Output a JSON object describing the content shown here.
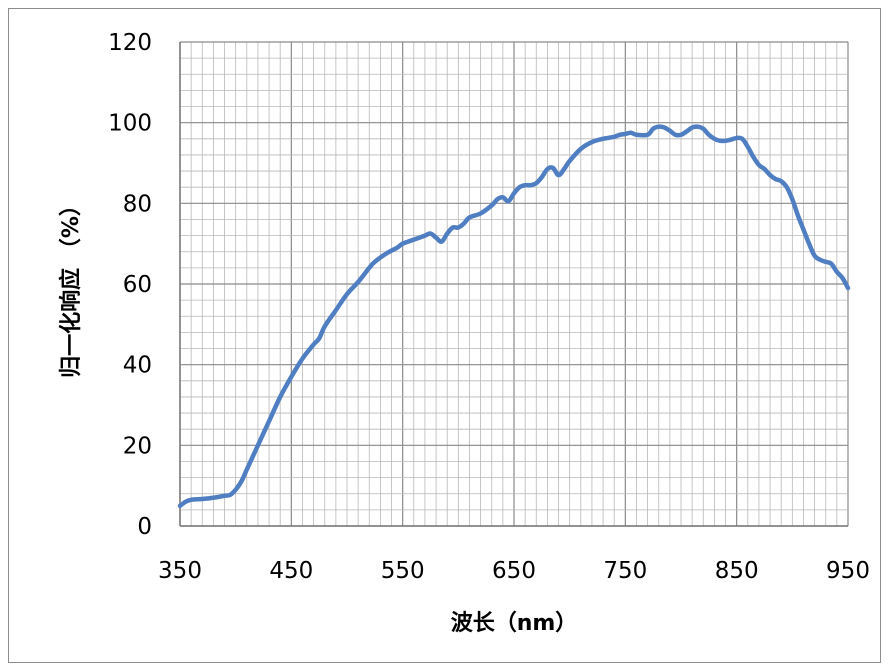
{
  "chart_data": {
    "type": "line",
    "xlabel": "波长（nm）",
    "ylabel": "归一化响应 （%）",
    "xlim": [
      350,
      950
    ],
    "ylim": [
      0,
      120
    ],
    "x_ticks": [
      350,
      450,
      550,
      650,
      750,
      850,
      950
    ],
    "y_ticks": [
      0,
      20,
      40,
      60,
      80,
      100,
      120
    ],
    "x_tick_labels": [
      "350",
      "450",
      "550",
      "650",
      "750",
      "850",
      "950"
    ],
    "y_tick_labels": [
      "0",
      "20",
      "40",
      "60",
      "80",
      "100",
      "120"
    ],
    "grid": true,
    "legend": "none",
    "series": [
      {
        "color": "#4f7ec2",
        "x": [
          350,
          355,
          360,
          370,
          380,
          390,
          395,
          400,
          405,
          410,
          420,
          430,
          440,
          450,
          460,
          470,
          475,
          480,
          490,
          500,
          510,
          520,
          525,
          535,
          545,
          550,
          560,
          570,
          575,
          580,
          585,
          590,
          595,
          600,
          605,
          610,
          620,
          630,
          635,
          640,
          645,
          650,
          655,
          660,
          665,
          670,
          675,
          680,
          685,
          690,
          695,
          700,
          710,
          720,
          730,
          740,
          745,
          750,
          755,
          760,
          770,
          775,
          780,
          785,
          790,
          795,
          800,
          805,
          810,
          815,
          820,
          825,
          830,
          835,
          840,
          845,
          850,
          855,
          860,
          865,
          870,
          875,
          880,
          885,
          890,
          895,
          900,
          905,
          910,
          915,
          920,
          925,
          930,
          935,
          940,
          945,
          950
        ],
        "y": [
          5,
          6,
          6.5,
          6.7,
          7,
          7.5,
          7.7,
          9,
          11,
          14,
          20,
          26,
          32,
          37,
          41.5,
          45,
          46.5,
          49.5,
          53.5,
          57.5,
          60.5,
          64,
          65.5,
          67.5,
          69,
          70,
          71,
          72,
          72.5,
          71.5,
          70.5,
          72.5,
          74,
          74,
          75,
          76.5,
          77.5,
          79.5,
          81,
          81.5,
          80.5,
          82.5,
          84,
          84.5,
          84.5,
          85,
          86.5,
          88.5,
          88.8,
          87,
          88.5,
          90.5,
          93.5,
          95.2,
          96,
          96.5,
          97,
          97.2,
          97.5,
          97,
          97,
          98.5,
          99,
          98.8,
          98,
          97,
          97,
          97.8,
          98.8,
          99,
          98.5,
          97,
          96,
          95.5,
          95.5,
          95.8,
          96.2,
          96,
          94,
          91.5,
          89.5,
          88.5,
          87,
          86,
          85.5,
          84,
          81,
          77,
          73.5,
          70,
          67,
          66,
          65.5,
          65,
          63,
          61.5,
          59
        ]
      }
    ]
  }
}
